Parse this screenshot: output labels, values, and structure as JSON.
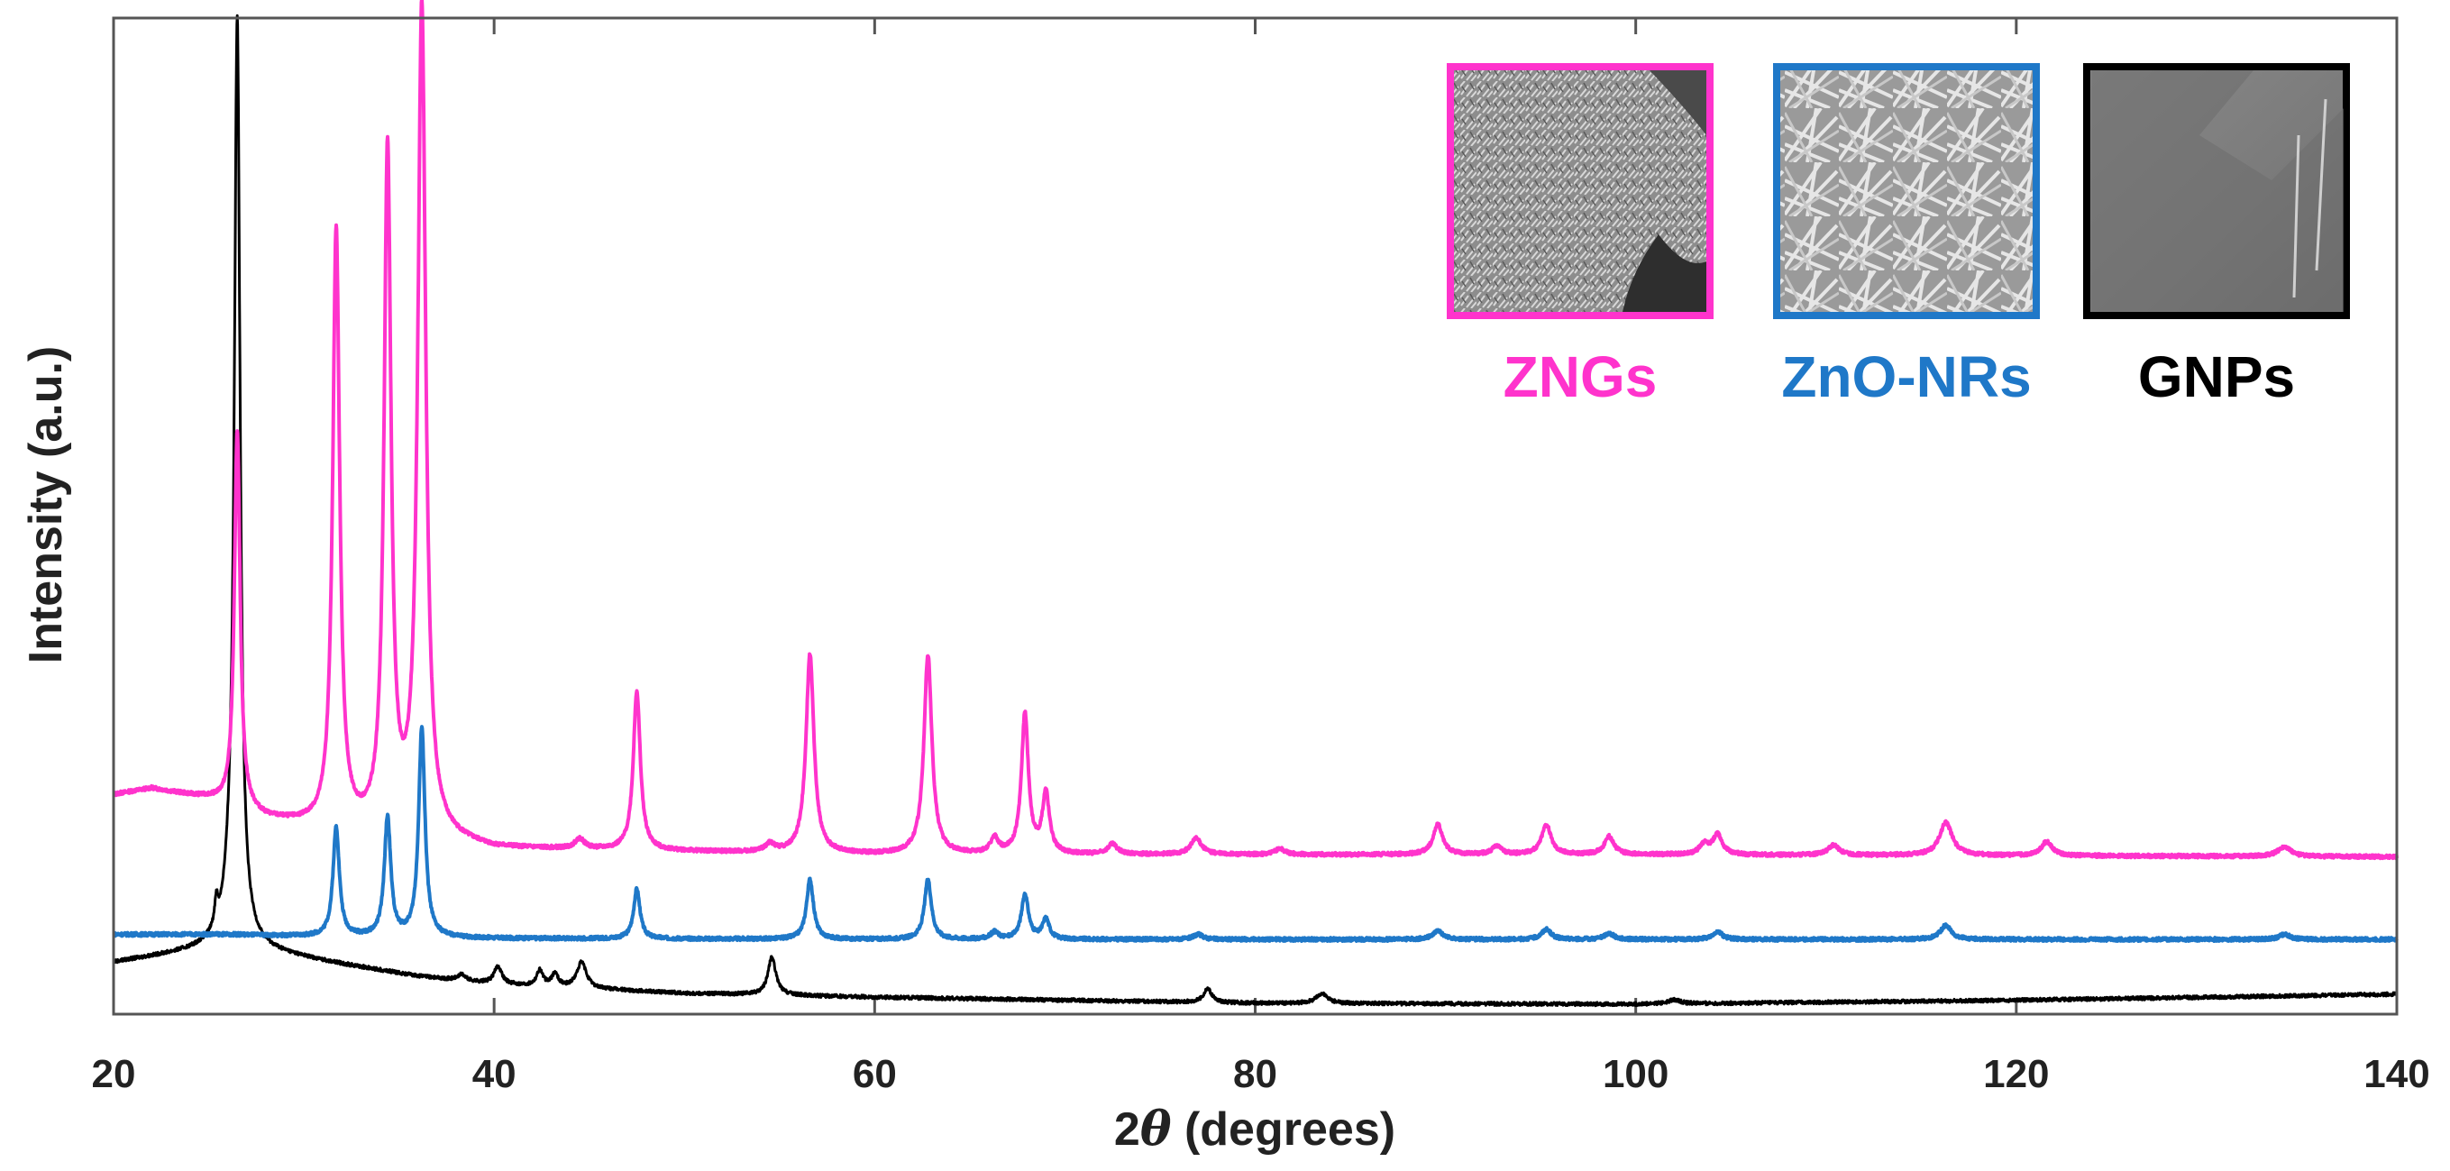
{
  "chart_data": {
    "type": "line",
    "title": "",
    "xlabel_prefix": "2",
    "xlabel_symbol": "θ",
    "xlabel_suffix": " (degrees)",
    "ylabel": "Intensity (a.u.)",
    "xlim": [
      20,
      140
    ],
    "ylim": [
      0,
      100
    ],
    "xticks": [
      "20",
      "40",
      "60",
      "80",
      "100",
      "120",
      "140"
    ],
    "xtick_values": [
      20,
      40,
      60,
      80,
      100,
      120,
      140
    ],
    "grid": false,
    "legend_placement": "top-right",
    "series": [
      {
        "name": "ZNGs",
        "color": "#ff33cc",
        "baseline": [
          [
            20,
            22
          ],
          [
            22,
            22.6
          ],
          [
            25,
            21.5
          ],
          [
            28,
            19.5
          ],
          [
            32,
            18.3
          ],
          [
            36,
            17.8
          ],
          [
            40,
            16.6
          ],
          [
            50,
            16.3
          ],
          [
            60,
            16
          ],
          [
            80,
            16
          ],
          [
            100,
            16
          ],
          [
            120,
            15.9
          ],
          [
            140,
            15.8
          ]
        ],
        "peaks": [
          [
            26.5,
            38,
            0.18
          ],
          [
            31.7,
            60,
            0.22
          ],
          [
            34.4,
            68,
            0.22
          ],
          [
            36.2,
            83,
            0.25
          ],
          [
            44.5,
            1,
            0.3
          ],
          [
            47.5,
            16,
            0.22
          ],
          [
            54.5,
            0.8,
            0.3
          ],
          [
            56.6,
            20,
            0.25
          ],
          [
            62.8,
            20,
            0.25
          ],
          [
            66.3,
            1.5,
            0.25
          ],
          [
            67.9,
            14,
            0.22
          ],
          [
            69,
            6,
            0.22
          ],
          [
            72.5,
            1,
            0.3
          ],
          [
            76.9,
            1.6,
            0.35
          ],
          [
            81.3,
            0.6,
            0.3
          ],
          [
            89.6,
            3,
            0.3
          ],
          [
            92.7,
            0.8,
            0.3
          ],
          [
            95.3,
            3,
            0.3
          ],
          [
            98.6,
            1.8,
            0.3
          ],
          [
            103.6,
            1,
            0.3
          ],
          [
            104.3,
            2,
            0.3
          ],
          [
            110.4,
            1,
            0.35
          ],
          [
            116.3,
            3.3,
            0.4
          ],
          [
            121.6,
            1.4,
            0.35
          ],
          [
            134.1,
            1,
            0.4
          ]
        ]
      },
      {
        "name": "ZnO-NRs",
        "color": "#1f78c8",
        "baseline": [
          [
            20,
            8
          ],
          [
            26,
            8
          ],
          [
            30,
            7.8
          ],
          [
            40,
            7.6
          ],
          [
            60,
            7.5
          ],
          [
            100,
            7.5
          ],
          [
            140,
            7.5
          ]
        ],
        "peaks": [
          [
            31.7,
            11,
            0.2
          ],
          [
            34.4,
            12,
            0.2
          ],
          [
            36.2,
            21,
            0.2
          ],
          [
            47.5,
            5,
            0.2
          ],
          [
            56.6,
            6,
            0.22
          ],
          [
            62.8,
            6,
            0.22
          ],
          [
            66.3,
            0.7,
            0.25
          ],
          [
            67.9,
            4.5,
            0.22
          ],
          [
            69,
            2,
            0.22
          ],
          [
            77,
            0.5,
            0.3
          ],
          [
            89.6,
            0.9,
            0.3
          ],
          [
            95.3,
            1,
            0.3
          ],
          [
            98.6,
            0.6,
            0.3
          ],
          [
            104.3,
            0.8,
            0.3
          ],
          [
            116.3,
            1.4,
            0.35
          ],
          [
            134.1,
            0.5,
            0.35
          ]
        ]
      },
      {
        "name": "GNPs",
        "color": "#000000",
        "baseline": [
          [
            20,
            5.2
          ],
          [
            24,
            6.3
          ],
          [
            26,
            7
          ],
          [
            28,
            6.3
          ],
          [
            32,
            5
          ],
          [
            36,
            3.8
          ],
          [
            40,
            3
          ],
          [
            50,
            2.1
          ],
          [
            60,
            1.7
          ],
          [
            80,
            1.1
          ],
          [
            100,
            1
          ],
          [
            120,
            1.4
          ],
          [
            140,
            2
          ]
        ],
        "peaks": [
          [
            25.4,
            2.5,
            0.1
          ],
          [
            26.5,
            91,
            0.18
          ],
          [
            26.2,
            4,
            0.4
          ],
          [
            38.3,
            0.6,
            0.25
          ],
          [
            40.2,
            1.8,
            0.25
          ],
          [
            42.4,
            1.6,
            0.2
          ],
          [
            43.2,
            1.3,
            0.2
          ],
          [
            44.6,
            2.6,
            0.3
          ],
          [
            54.6,
            3.8,
            0.25
          ],
          [
            77.5,
            1.4,
            0.25
          ],
          [
            83.5,
            1,
            0.35
          ],
          [
            102,
            0.4,
            0.4
          ]
        ]
      }
    ],
    "legend": [
      {
        "label": "ZNGs",
        "color": "#ff33cc"
      },
      {
        "label": "ZnO-NRs",
        "color": "#1f78c8"
      },
      {
        "label": "GNPs",
        "color": "#000000"
      }
    ]
  }
}
